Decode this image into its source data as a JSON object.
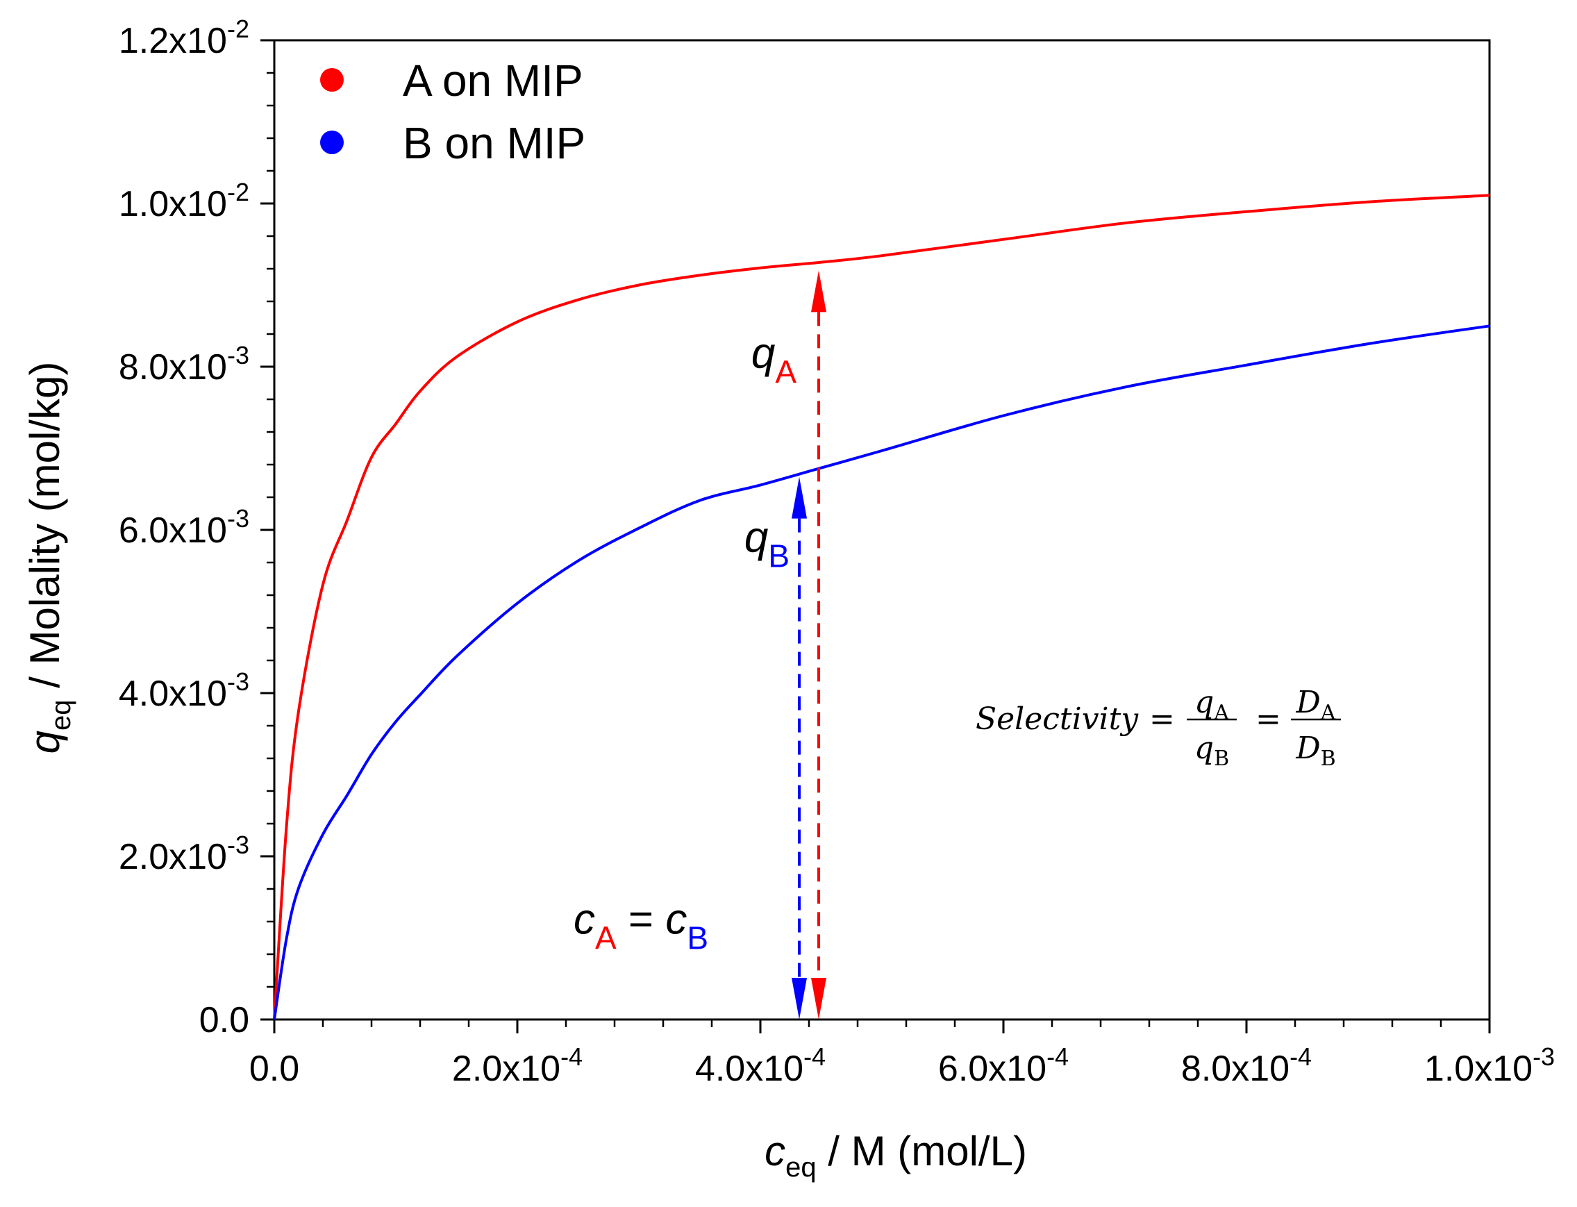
{
  "chart_data": {
    "type": "line",
    "title": "",
    "xlabel": {
      "symbol": "c",
      "sub": "eq",
      "rest": " / M (mol/L)"
    },
    "ylabel": {
      "symbol": "q",
      "sub": "eq",
      "rest": " / Molality (mol/kg)"
    },
    "xlim": [
      0,
      0.001
    ],
    "ylim": [
      0,
      0.012
    ],
    "grid": false,
    "x_ticks": [
      {
        "value": 0,
        "mant": "0.0",
        "exp": ""
      },
      {
        "value": 0.0002,
        "mant": "2.0x10",
        "exp": "-4"
      },
      {
        "value": 0.0004,
        "mant": "4.0x10",
        "exp": "-4"
      },
      {
        "value": 0.0006,
        "mant": "6.0x10",
        "exp": "-4"
      },
      {
        "value": 0.0008,
        "mant": "8.0x10",
        "exp": "-4"
      },
      {
        "value": 0.001,
        "mant": "1.0x10",
        "exp": "-3"
      }
    ],
    "y_ticks": [
      {
        "value": 0,
        "mant": "0.0",
        "exp": ""
      },
      {
        "value": 0.002,
        "mant": "2.0x10",
        "exp": "-3"
      },
      {
        "value": 0.004,
        "mant": "4.0x10",
        "exp": "-3"
      },
      {
        "value": 0.006,
        "mant": "6.0x10",
        "exp": "-3"
      },
      {
        "value": 0.008,
        "mant": "8.0x10",
        "exp": "-3"
      },
      {
        "value": 0.01,
        "mant": "1.0x10",
        "exp": "-2"
      },
      {
        "value": 0.012,
        "mant": "1.2x10",
        "exp": "-2"
      }
    ],
    "legend_position": "top-left",
    "series": [
      {
        "name": "A on MIP",
        "color": "#ff0000",
        "x": [
          0,
          1e-05,
          2e-05,
          4e-05,
          6e-05,
          8e-05,
          0.0001,
          0.00012,
          0.00015,
          0.0002,
          0.00025,
          0.0003,
          0.00035,
          0.0004,
          0.00045,
          0.0005,
          0.0006,
          0.0007,
          0.0008,
          0.0009,
          0.001
        ],
        "y": [
          0,
          0.00236,
          0.00378,
          0.00533,
          0.00612,
          0.00689,
          0.0073,
          0.0077,
          0.00812,
          0.00855,
          0.00882,
          0.009,
          0.00912,
          0.00921,
          0.00928,
          0.00936,
          0.00956,
          0.00976,
          0.0099,
          0.01002,
          0.0101
        ]
      },
      {
        "name": "B on MIP",
        "color": "#0000ff",
        "x": [
          0,
          1e-05,
          2e-05,
          4e-05,
          6e-05,
          8e-05,
          0.0001,
          0.00012,
          0.00015,
          0.0002,
          0.00025,
          0.0003,
          0.00035,
          0.0004,
          0.00045,
          0.0005,
          0.0006,
          0.0007,
          0.0008,
          0.0009,
          0.001
        ],
        "y": [
          0,
          0.00099,
          0.00161,
          0.00227,
          0.00275,
          0.00325,
          0.00365,
          0.00398,
          0.00445,
          0.0051,
          0.00562,
          0.00602,
          0.00636,
          0.00655,
          0.00676,
          0.00697,
          0.0074,
          0.00775,
          0.00802,
          0.00828,
          0.0085
        ]
      }
    ],
    "annotations": {
      "qA": {
        "symbol": "q",
        "sub": "A",
        "x": 0.000448,
        "y_top": 0.00918,
        "color": "#ff0000"
      },
      "qB": {
        "symbol": "q",
        "sub": "B",
        "x": 0.000432,
        "y_top": 0.00665,
        "color": "#0000ff"
      },
      "equal": {
        "c": "c",
        "subA": "A",
        "eq": " = ",
        "subB": "B"
      },
      "selectivity": {
        "word": "Selectivity",
        "eq": "=",
        "q": "q",
        "D": "D",
        "subA": "A",
        "subB": "B"
      }
    }
  }
}
